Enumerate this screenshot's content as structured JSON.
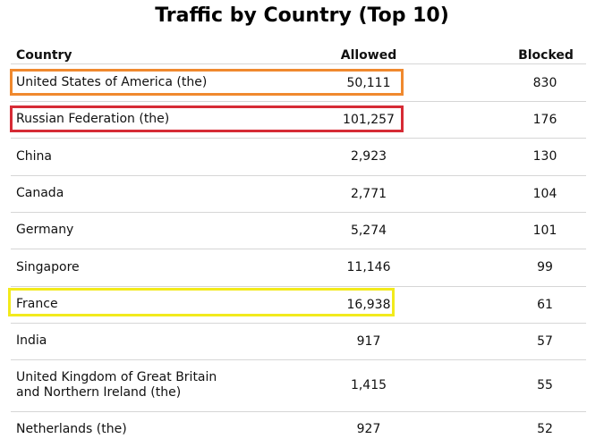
{
  "title": "Traffic by Country (Top 10)",
  "columns": {
    "country": "Country",
    "allowed": "Allowed",
    "blocked": "Blocked"
  },
  "rows": [
    {
      "country": "United States of America (the)",
      "allowed": "50,111",
      "blocked": "830"
    },
    {
      "country": "Russian Federation (the)",
      "allowed": "101,257",
      "blocked": "176"
    },
    {
      "country": "China",
      "allowed": "2,923",
      "blocked": "130"
    },
    {
      "country": "Canada",
      "allowed": "2,771",
      "blocked": "104"
    },
    {
      "country": "Germany",
      "allowed": "5,274",
      "blocked": "101"
    },
    {
      "country": "Singapore",
      "allowed": "11,146",
      "blocked": "99"
    },
    {
      "country": "France",
      "allowed": "16,938",
      "blocked": "61"
    },
    {
      "country": "India",
      "allowed": "917",
      "blocked": "57"
    },
    {
      "country": "United Kingdom of Great Britain and Northern Ireland (the)",
      "allowed": "1,415",
      "blocked": "55"
    },
    {
      "country": "Netherlands (the)",
      "allowed": "927",
      "blocked": "52"
    }
  ],
  "highlights": [
    {
      "row": 0,
      "color": "#f0892e"
    },
    {
      "row": 1,
      "color": "#d62b35"
    },
    {
      "row": 6,
      "color": "#f2ea1c"
    }
  ]
}
